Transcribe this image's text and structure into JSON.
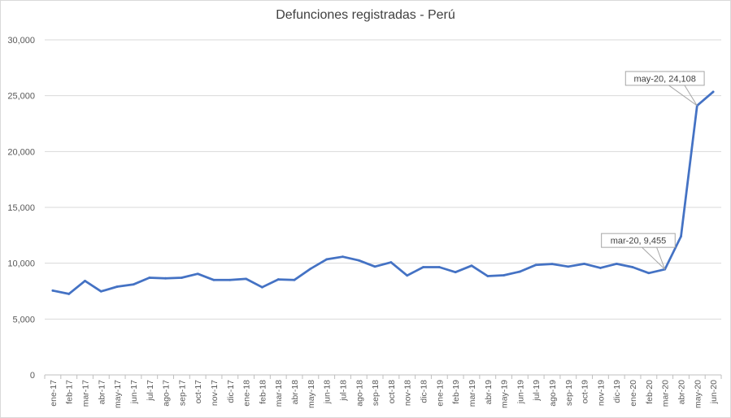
{
  "chart_data": {
    "type": "line",
    "title": "Defunciones registradas - Perú",
    "xlabel": "",
    "ylabel": "",
    "ylim": [
      0,
      30000
    ],
    "yticks": [
      0,
      5000,
      10000,
      15000,
      20000,
      25000,
      30000
    ],
    "ytick_labels": [
      "0",
      "5,000",
      "10,000",
      "15,000",
      "20,000",
      "25,000",
      "30,000"
    ],
    "grid": true,
    "legend": "none",
    "colors": {
      "line": "#4472c4",
      "grid": "#d9d9d9",
      "axis": "#bfbfbf"
    },
    "categories": [
      "ene-17",
      "feb-17",
      "mar-17",
      "abr-17",
      "may-17",
      "jun-17",
      "jul-17",
      "ago-17",
      "sep-17",
      "oct-17",
      "nov-17",
      "dic-17",
      "ene-18",
      "feb-18",
      "mar-18",
      "abr-18",
      "may-18",
      "jun-18",
      "jul-18",
      "ago-18",
      "sep-18",
      "oct-18",
      "nov-18",
      "dic-18",
      "ene-19",
      "feb-19",
      "mar-19",
      "abr-19",
      "may-19",
      "jun-19",
      "jul-19",
      "ago-19",
      "sep-19",
      "oct-19",
      "nov-19",
      "dic-19",
      "ene-20",
      "feb-20",
      "mar-20",
      "abr-20",
      "may-20",
      "jun-20"
    ],
    "series": [
      {
        "values": [
          7550,
          7250,
          8420,
          7480,
          7900,
          8100,
          8700,
          8650,
          8700,
          9050,
          8500,
          8500,
          8600,
          7850,
          8550,
          8500,
          9500,
          10350,
          10580,
          10250,
          9700,
          10080,
          8900,
          9650,
          9650,
          9200,
          9780,
          8850,
          8920,
          9250,
          9850,
          9930,
          9700,
          9950,
          9580,
          9950,
          9650,
          9120,
          9455,
          12400,
          24108,
          25350
        ]
      }
    ],
    "annotations": [
      {
        "category": "mar-20",
        "value": 9455,
        "text": "mar-20, 9,455"
      },
      {
        "category": "may-20",
        "value": 24108,
        "text": "may-20, 24,108"
      }
    ]
  }
}
